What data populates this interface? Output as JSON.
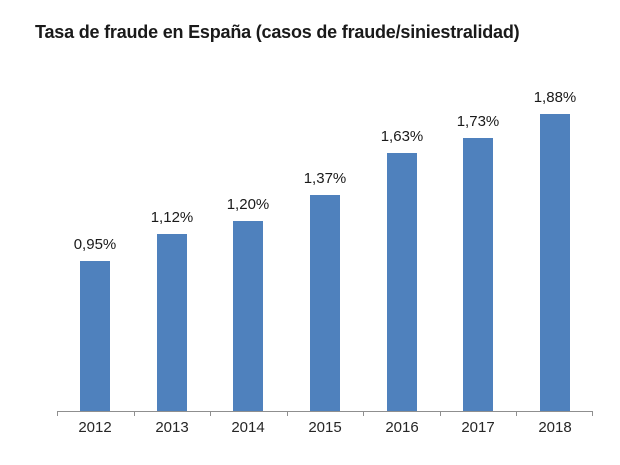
{
  "title": "Tasa de fraude en España (casos de fraude/siniestralidad)",
  "colors": {
    "bar": "#4f81bd",
    "axis": "#8f8f8f",
    "data_label": "#1a1a1a",
    "tick_label": "#262626",
    "background": "#ffffff"
  },
  "chart_data": {
    "type": "bar",
    "title": "Tasa de fraude en España (casos de fraude/siniestralidad)",
    "categories": [
      "2012",
      "2013",
      "2014",
      "2015",
      "2016",
      "2017",
      "2018"
    ],
    "values": [
      0.95,
      1.12,
      1.2,
      1.37,
      1.63,
      1.73,
      1.88
    ],
    "data_labels": [
      "0,95%",
      "1,12%",
      "1,20%",
      "1,37%",
      "1,63%",
      "1,73%",
      "1,88%"
    ],
    "xlabel": "",
    "ylabel": "",
    "ylim": [
      0,
      2
    ],
    "grid": false,
    "legend_position": "none"
  }
}
